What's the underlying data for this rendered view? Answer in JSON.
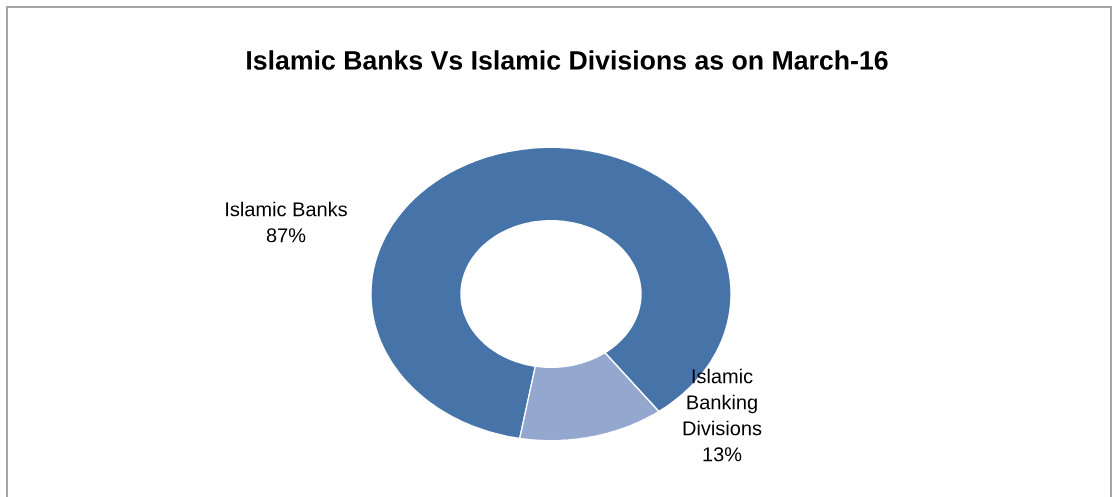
{
  "chart_data": {
    "type": "donut",
    "title": "Islamic Banks Vs Islamic Divisions as on March-16",
    "categories": [
      "Islamic Banks",
      "Islamic Banking Divisions"
    ],
    "values": [
      87,
      13
    ],
    "colors": [
      "#4673a8",
      "#94a8cf"
    ],
    "value_labels": [
      "87%",
      "13%"
    ]
  }
}
